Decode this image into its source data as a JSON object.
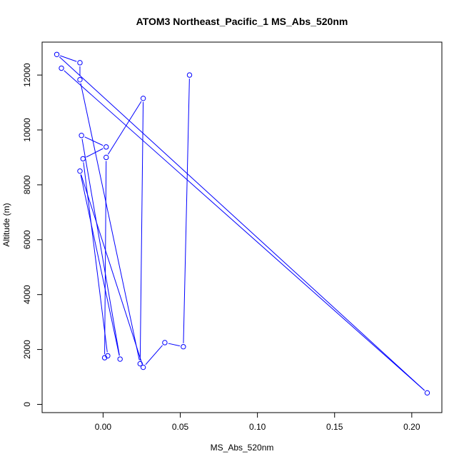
{
  "chart_data": {
    "type": "line",
    "title": "ATOM3 Northeast_Pacific_1 MS_Abs_520nm",
    "xlabel": "MS_Abs_520nm",
    "ylabel": "Altitude (m)",
    "xlim": [
      -0.0395,
      0.2195
    ],
    "ylim": [
      -300,
      13200
    ],
    "x_ticks": [
      0.0,
      0.05,
      0.1,
      0.15,
      0.2
    ],
    "x_tick_labels": [
      "0.00",
      "0.05",
      "0.10",
      "0.15",
      "0.20"
    ],
    "y_ticks": [
      0,
      2000,
      4000,
      6000,
      8000,
      10000,
      12000
    ],
    "y_tick_labels": [
      "0",
      "2000",
      "4000",
      "6000",
      "8000",
      "10000",
      "12000"
    ],
    "grid": false,
    "legend": "none",
    "series": [
      {
        "color": "#0000ff",
        "marker": "open-circle",
        "points": [
          {
            "x": 0.056,
            "y": 12000
          },
          {
            "x": 0.052,
            "y": 2100
          },
          {
            "x": 0.04,
            "y": 2250
          },
          {
            "x": 0.026,
            "y": 1350
          },
          {
            "x": -0.015,
            "y": 8500
          },
          {
            "x": 0.011,
            "y": 1650
          },
          {
            "x": -0.014,
            "y": 9800
          },
          {
            "x": 0.002,
            "y": 9380
          },
          {
            "x": -0.013,
            "y": 8950
          },
          {
            "x": 0.003,
            "y": 1770
          },
          {
            "x": 0.001,
            "y": 1700
          },
          {
            "x": 0.002,
            "y": 9000
          },
          {
            "x": 0.026,
            "y": 11150
          },
          {
            "x": 0.024,
            "y": 1480
          },
          {
            "x": -0.015,
            "y": 11830
          },
          {
            "x": -0.015,
            "y": 12450
          },
          {
            "x": -0.03,
            "y": 12750
          },
          {
            "x": 0.21,
            "y": 420
          },
          {
            "x": -0.027,
            "y": 12250
          }
        ]
      }
    ]
  }
}
